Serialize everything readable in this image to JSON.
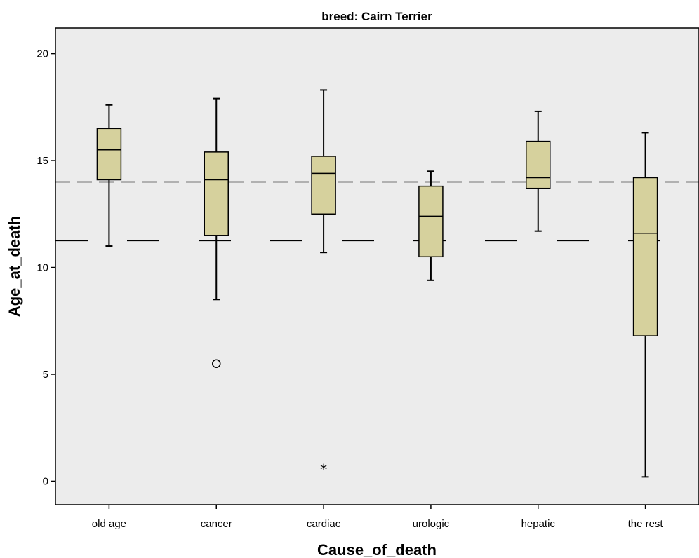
{
  "chart_data": {
    "type": "box",
    "title": "breed: Cairn Terrier",
    "xlabel": "Cause_of_death",
    "ylabel": "Age_at_death",
    "ylim": [
      -1.1,
      21.2
    ],
    "yticks": [
      0,
      5,
      10,
      15,
      20
    ],
    "categories": [
      "old age",
      "cancer",
      "cardiac",
      "urologic",
      "hepatic",
      "the rest"
    ],
    "boxes": [
      {
        "category": "old age",
        "whisker_low": 11.0,
        "q1": 14.1,
        "median": 15.5,
        "q3": 16.5,
        "whisker_high": 17.6
      },
      {
        "category": "cancer",
        "whisker_low": 8.5,
        "q1": 11.5,
        "median": 14.1,
        "q3": 15.4,
        "whisker_high": 17.9
      },
      {
        "category": "cardiac",
        "whisker_low": 10.7,
        "q1": 12.5,
        "median": 14.4,
        "q3": 15.2,
        "whisker_high": 18.3
      },
      {
        "category": "urologic",
        "whisker_low": 9.4,
        "q1": 10.5,
        "median": 12.4,
        "q3": 13.8,
        "whisker_high": 14.5
      },
      {
        "category": "hepatic",
        "whisker_low": 11.7,
        "q1": 13.7,
        "median": 14.2,
        "q3": 15.9,
        "whisker_high": 17.3
      },
      {
        "category": "the rest",
        "whisker_low": 0.2,
        "q1": 6.8,
        "median": 11.6,
        "q3": 14.2,
        "whisker_high": 16.3
      }
    ],
    "outliers": [
      {
        "category": "cancer",
        "value": 5.5,
        "marker": "circle"
      },
      {
        "category": "cardiac",
        "value": 0.6,
        "marker": "star"
      }
    ],
    "reference_lines": [
      {
        "value": 14.0,
        "style": "short-dash"
      },
      {
        "value": 11.25,
        "style": "long-dash"
      }
    ],
    "plot_background": "#ececec",
    "box_fill": "#d6d19d",
    "line_color": "#000000",
    "grid": false
  }
}
